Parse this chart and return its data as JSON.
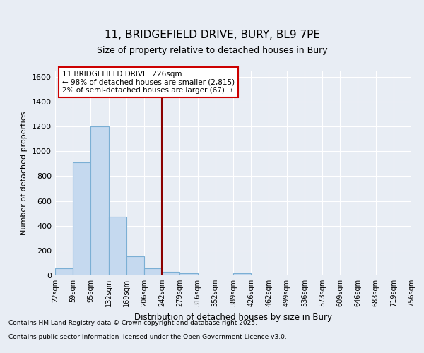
{
  "title_line1": "11, BRIDGEFIELD DRIVE, BURY, BL9 7PE",
  "title_line2": "Size of property relative to detached houses in Bury",
  "xlabel": "Distribution of detached houses by size in Bury",
  "ylabel": "Number of detached properties",
  "categories": [
    "22sqm",
    "59sqm",
    "95sqm",
    "132sqm",
    "169sqm",
    "206sqm",
    "242sqm",
    "279sqm",
    "316sqm",
    "352sqm",
    "389sqm",
    "426sqm",
    "462sqm",
    "499sqm",
    "536sqm",
    "573sqm",
    "609sqm",
    "646sqm",
    "683sqm",
    "719sqm",
    "756sqm"
  ],
  "bar_heights": [
    55,
    910,
    1200,
    470,
    155,
    55,
    30,
    15,
    0,
    0,
    15,
    0,
    0,
    0,
    0,
    0,
    0,
    0,
    0,
    0
  ],
  "bar_color": "#c5d9ef",
  "bar_edgecolor": "#7bafd4",
  "ylim": [
    0,
    1650
  ],
  "yticks": [
    0,
    200,
    400,
    600,
    800,
    1000,
    1200,
    1400,
    1600
  ],
  "property_bin_index": 6,
  "vline_color": "#8b0000",
  "annotation_text": "11 BRIDGEFIELD DRIVE: 226sqm\n← 98% of detached houses are smaller (2,815)\n2% of semi-detached houses are larger (67) →",
  "annotation_box_edgecolor": "#cc0000",
  "bg_color": "#e8edf4",
  "grid_color": "#ffffff",
  "footer_line1": "Contains HM Land Registry data © Crown copyright and database right 2025.",
  "footer_line2": "Contains public sector information licensed under the Open Government Licence v3.0."
}
